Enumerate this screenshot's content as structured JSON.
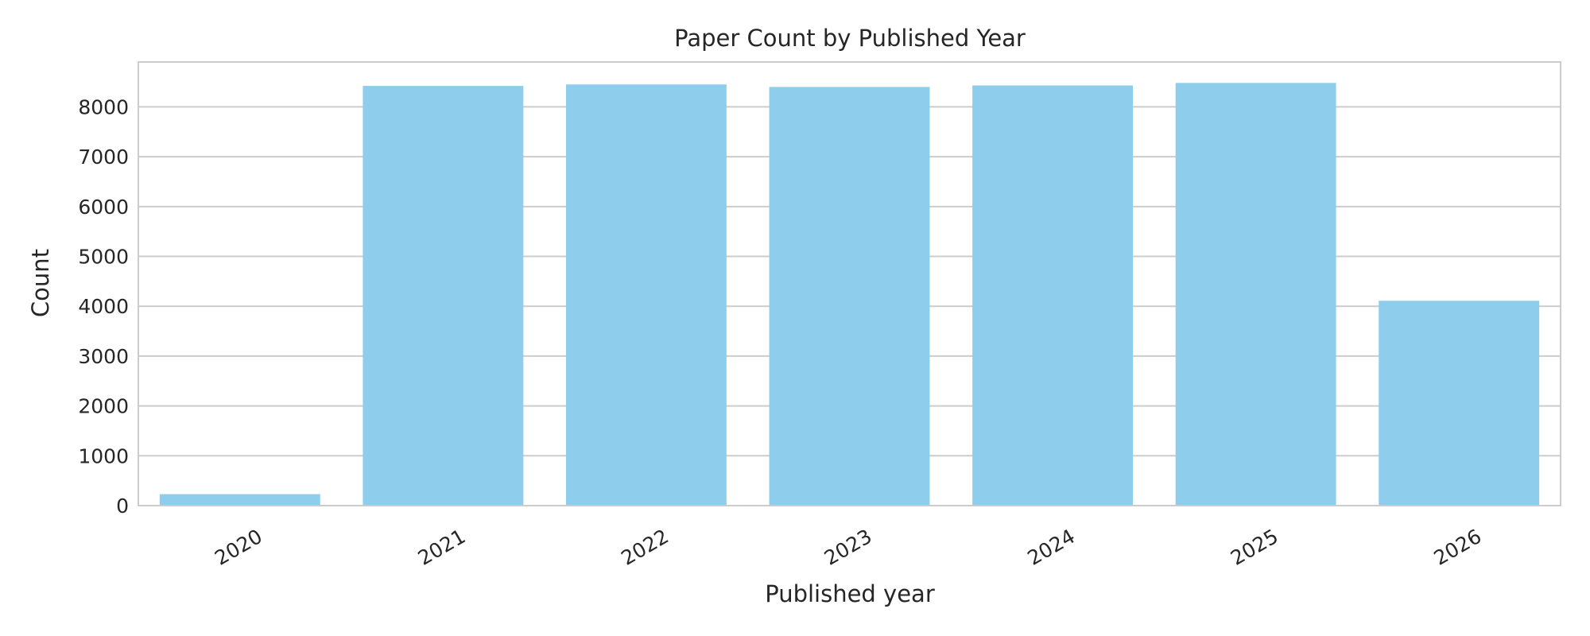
{
  "colors": {
    "bar": "#8ECDEB",
    "grid": "#CCCCCC",
    "frame": "#CCCCCC",
    "text": "#262626",
    "background": "#FFFFFF"
  },
  "chart_data": {
    "type": "bar",
    "title": "Paper Count by Published Year",
    "xlabel": "Published year",
    "ylabel": "Count",
    "categories": [
      "2020",
      "2021",
      "2022",
      "2023",
      "2024",
      "2025",
      "2026"
    ],
    "values": [
      230,
      8420,
      8450,
      8400,
      8430,
      8480,
      4110
    ],
    "ylim": [
      0,
      8900
    ],
    "yticks": [
      "0",
      "1000",
      "2000",
      "3000",
      "4000",
      "5000",
      "6000",
      "7000",
      "8000"
    ],
    "grid": true,
    "legend": "none"
  }
}
